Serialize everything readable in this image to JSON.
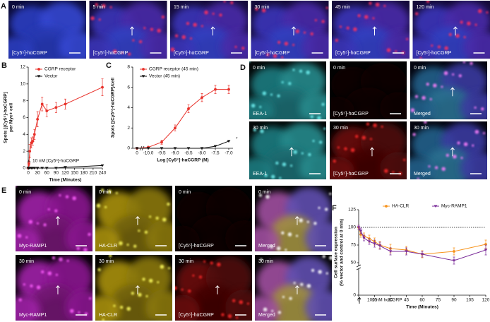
{
  "panels": {
    "A": {
      "label": "A",
      "images": [
        {
          "time": "0 min",
          "caption": "[Cy5⁵]-hαCGRP"
        },
        {
          "time": "5 min",
          "caption": "[Cy5⁵]-hαCGRP"
        },
        {
          "time": "15 min",
          "caption": "[Cy5⁵]-hαCGRP"
        },
        {
          "time": "30 min",
          "caption": "[Cy5⁵]-hαCGRP"
        },
        {
          "time": "45 min",
          "caption": "[Cy5⁵]-hαCGRP"
        },
        {
          "time": "120 min",
          "caption": "[Cy5⁵]-hαCGRP"
        }
      ]
    },
    "D": {
      "label": "D",
      "images": [
        {
          "time": "0 min",
          "caption": "EEA-1"
        },
        {
          "time": "0 min",
          "caption": "[Cy5⁵]-hαCGRP"
        },
        {
          "time": "0 min",
          "caption": "Merged"
        },
        {
          "time": "30 min",
          "caption": "EEA-1"
        },
        {
          "time": "30 min",
          "caption": "[Cy5⁵]-hαCGRP"
        },
        {
          "time": "30 min",
          "caption": "Merged"
        }
      ]
    },
    "E": {
      "label": "E",
      "images": [
        {
          "time": "0 min",
          "caption": "Myc-RAMP1"
        },
        {
          "time": "0 min",
          "caption": "HA-CLR"
        },
        {
          "time": "0 min",
          "caption": "[Cy5⁵]-hαCGRP"
        },
        {
          "time": "0 min",
          "caption": "Merged"
        },
        {
          "time": "30 min",
          "caption": "Myc-RAMP1"
        },
        {
          "time": "30 min",
          "caption": "HA-CLR"
        },
        {
          "time": "30 min",
          "caption": "[Cy5⁵]-hαCGRP"
        },
        {
          "time": "30 min",
          "caption": "Merged"
        }
      ]
    }
  },
  "chart_data": [
    {
      "type": "line",
      "panel_label": "B",
      "ylabel": [
        "Spots [(Cy5⁵)-hαCGRP]",
        "per Myc+ cell"
      ],
      "xlabel": "Time (Minutes)",
      "annotation": "10 nM [Cy5⁵]-hαCGRP",
      "x": [
        0,
        2,
        5,
        10,
        15,
        20,
        30,
        45,
        60,
        90,
        120,
        240
      ],
      "series": [
        {
          "name": "CGRP receptor",
          "color": "#e8312a",
          "marker": "circle",
          "values": [
            0,
            0.5,
            2,
            3,
            3.2,
            4,
            5.8,
            7.6,
            6.8,
            7.2,
            7.6,
            9.6
          ],
          "errors": [
            0,
            0.2,
            0.8,
            0.6,
            0.5,
            0.6,
            0.9,
            0.8,
            0.7,
            0.6,
            0.6,
            1.0
          ]
        },
        {
          "name": "Vector",
          "color": "#111111",
          "marker": "triangle",
          "values": [
            0,
            0,
            0,
            0,
            0,
            0,
            0,
            0,
            0,
            0,
            0.1,
            0.3
          ]
        }
      ],
      "xlim": [
        0,
        240
      ],
      "xticks": [
        0,
        30,
        60,
        90,
        120,
        150,
        180,
        210,
        240
      ],
      "ylim": [
        0,
        12
      ],
      "yticks": [
        0,
        2,
        4,
        6,
        8,
        10,
        12
      ]
    },
    {
      "type": "line",
      "panel_label": "C",
      "ylabel": [
        "Spots [(Cy5⁵)-hαCGRP]/cell"
      ],
      "xlabel": "Log [Cy5⁵]-hαCGRP (M)",
      "annotation": "*",
      "categories": [
        "0",
        "-10.0",
        "-9.5",
        "-9.0",
        "-8.5",
        "-8.0",
        "-7.5",
        "-7.0"
      ],
      "series": [
        {
          "name": "CGRP receptor (45 min)",
          "color": "#e8312a",
          "marker": "circle",
          "values": [
            0,
            0.1,
            0.6,
            2,
            3.9,
            5,
            5.8,
            5.8
          ],
          "errors": [
            0,
            0.1,
            0.2,
            0.3,
            0.4,
            0.4,
            0.4,
            0.4
          ]
        },
        {
          "name": "Vector (45 min)",
          "color": "#111111",
          "marker": "triangle",
          "values": [
            0,
            0,
            0,
            0,
            0,
            0,
            0.2,
            0.7
          ]
        }
      ],
      "ylim": [
        0,
        8
      ],
      "yticks": [
        0,
        2,
        4,
        6,
        8
      ]
    },
    {
      "type": "line",
      "panel_label": "F",
      "ylabel": [
        "Cell surface expression",
        "(% vector and control at 0 min)"
      ],
      "xlabel": "Time (Minutes)",
      "annotation": "100 nM hαCGRP",
      "axis_break": true,
      "reference_line": 100,
      "x": [
        0,
        2,
        5,
        10,
        15,
        20,
        30,
        45,
        60,
        90,
        120
      ],
      "series": [
        {
          "name": "HA-CLR",
          "color": "#f7941d",
          "marker": "circle",
          "values": [
            100,
            90,
            88,
            84,
            80,
            75,
            70,
            68,
            62,
            66,
            76
          ],
          "errors": [
            3,
            4,
            4,
            5,
            5,
            5,
            6,
            5,
            5,
            5,
            6
          ]
        },
        {
          "name": "Myc-RAMP1",
          "color": "#7b2d9a",
          "marker": "triangle",
          "values": [
            100,
            95,
            85,
            80,
            77,
            74,
            66,
            66,
            62,
            53,
            68
          ],
          "errors": [
            3,
            4,
            4,
            4,
            5,
            5,
            5,
            5,
            4,
            5,
            7
          ]
        }
      ],
      "xlim": [
        0,
        120
      ],
      "xticks": [
        0,
        15,
        30,
        45,
        60,
        75,
        90,
        105,
        120
      ],
      "ylim": [
        0,
        125
      ],
      "yticks": [
        0,
        50,
        75,
        100,
        125
      ]
    }
  ]
}
